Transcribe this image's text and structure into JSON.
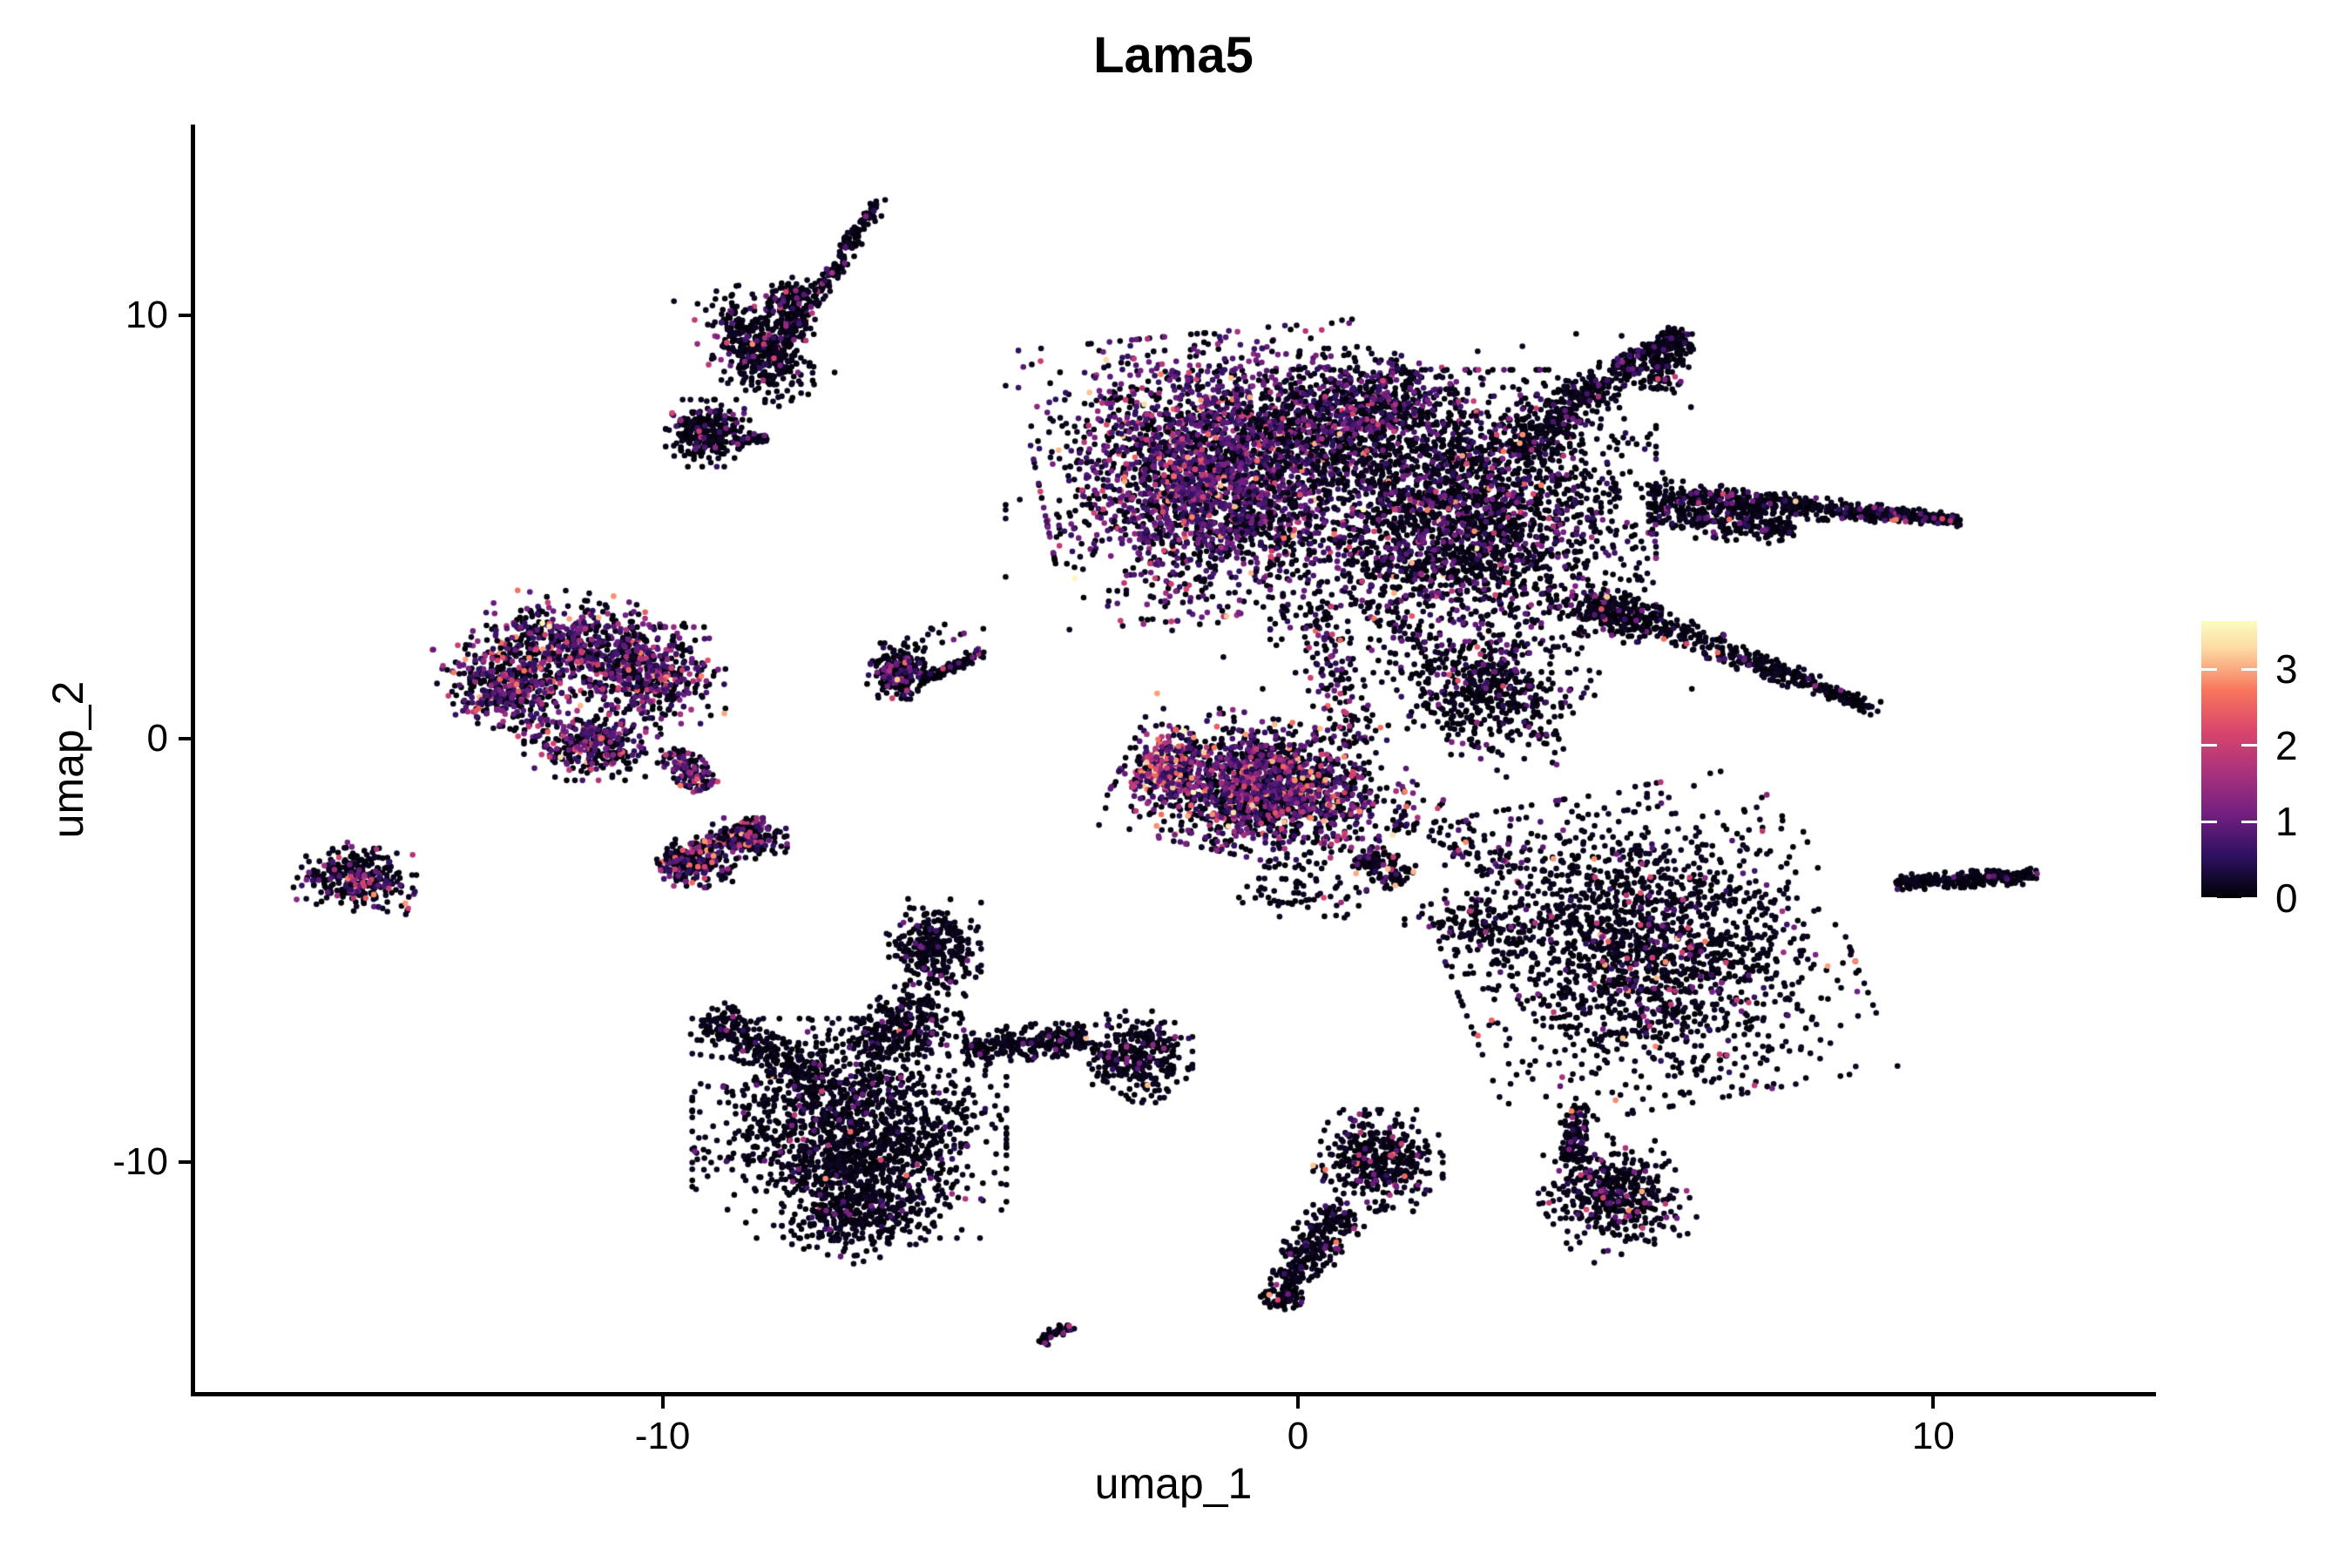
{
  "chart_data": {
    "type": "scatter",
    "title": "Lama5",
    "xlabel": "umap_1",
    "ylabel": "umap_2",
    "x_range": [
      -17.37,
      13.45
    ],
    "y_range": [
      -15.51,
      14.51
    ],
    "x_ticks": [
      {
        "value": -10,
        "label": "-10"
      },
      {
        "value": 0,
        "label": "0"
      },
      {
        "value": 10,
        "label": "10"
      }
    ],
    "y_ticks": [
      {
        "value": 10,
        "label": "10"
      },
      {
        "value": 0,
        "label": "0"
      },
      {
        "value": -10,
        "label": "-10"
      }
    ],
    "grid": false,
    "legend_position": "right",
    "point_radius_px": 3.3,
    "colorbar": {
      "min": 0,
      "max": 3.63,
      "ticks": [
        {
          "value": 3,
          "label": "3"
        },
        {
          "value": 2,
          "label": "2"
        },
        {
          "value": 1,
          "label": "1"
        },
        {
          "value": 0,
          "label": "0"
        }
      ],
      "colormap": [
        [
          0.0,
          "#000004"
        ],
        [
          0.15,
          "#2c115f"
        ],
        [
          0.3,
          "#721f81"
        ],
        [
          0.45,
          "#a8327d"
        ],
        [
          0.6,
          "#d8456c"
        ],
        [
          0.75,
          "#f8765c"
        ],
        [
          0.9,
          "#fcd9a2"
        ],
        [
          1.0,
          "#fcfdbf"
        ]
      ]
    },
    "value_bands": [
      [
        0,
        0.22
      ],
      [
        0.45,
        1.2
      ],
      [
        1.3,
        2.2
      ],
      [
        2.3,
        3.2
      ],
      [
        3.2,
        3.63
      ]
    ],
    "clusters": [
      {
        "name": "tl-streak",
        "kind": "streak",
        "x1": -6.55,
        "y1": 12.76,
        "x2": -8.29,
        "y2": 8.91,
        "w": 0.12,
        "taper": 0,
        "n": 230,
        "bands": [
          0.88,
          0.09,
          0.025,
          0.005,
          0
        ]
      },
      {
        "name": "tl-blob",
        "kind": "gauss",
        "cx": -8.47,
        "cy": 9.26,
        "rx": 0.75,
        "ry": 1.23,
        "rot": 20,
        "n": 420,
        "bands": [
          0.88,
          0.09,
          0.025,
          0.005,
          0
        ]
      },
      {
        "name": "tl-blob-upper",
        "kind": "gauss",
        "cx": -8.02,
        "cy": 10.35,
        "rx": 0.35,
        "ry": 0.5,
        "rot": 0,
        "n": 120,
        "bands": [
          0.88,
          0.09,
          0.025,
          0.005,
          0
        ]
      },
      {
        "name": "tl-tail",
        "kind": "gauss",
        "cx": -9.29,
        "cy": 7.22,
        "rx": 0.55,
        "ry": 0.66,
        "rot": 0,
        "n": 260,
        "bands": [
          0.9,
          0.075,
          0.02,
          0.005,
          0
        ]
      },
      {
        "name": "tl-dash",
        "kind": "streak",
        "x1": -8.83,
        "y1": 7.06,
        "x2": -8.36,
        "y2": 7.12,
        "w": 0.08,
        "taper": 0,
        "n": 50,
        "bands": [
          0.92,
          0.06,
          0.02,
          0,
          0
        ]
      },
      {
        "name": "main-left-lobe",
        "kind": "gauss",
        "cx": -1.37,
        "cy": 6.23,
        "rx": 2.26,
        "ry": 2.78,
        "rot": 8,
        "n": 2700,
        "bands": [
          0.5,
          0.4,
          0.08,
          0.018,
          0.002
        ]
      },
      {
        "name": "main-right-core",
        "kind": "gauss",
        "cx": 2.6,
        "cy": 5.14,
        "rx": 2.53,
        "ry": 2.98,
        "rot": 0,
        "n": 2500,
        "bands": [
          0.8,
          0.165,
          0.025,
          0.009,
          0.001
        ]
      },
      {
        "name": "main-top-mid",
        "kind": "gauss",
        "cx": 0.96,
        "cy": 7.78,
        "rx": 1.6,
        "ry": 1.2,
        "rot": 0,
        "n": 700,
        "bands": [
          0.65,
          0.28,
          0.06,
          0.01,
          0
        ]
      },
      {
        "name": "main-lower-wedge",
        "kind": "gauss",
        "cx": 2.88,
        "cy": 1.19,
        "rx": 1.3,
        "ry": 1.1,
        "rot": -20,
        "n": 420,
        "bands": [
          0.88,
          0.1,
          0.015,
          0.005,
          0
        ]
      },
      {
        "name": "arm-upper-right",
        "kind": "streak",
        "x1": 4.11,
        "y1": 7.78,
        "x2": 6.06,
        "y2": 9.63,
        "w": 0.35,
        "taper": 0.5,
        "n": 330,
        "bands": [
          0.9,
          0.085,
          0.012,
          0.003,
          0
        ]
      },
      {
        "name": "arm-upper-hook",
        "kind": "streak",
        "x1": 6.06,
        "y1": 9.53,
        "x2": 5.59,
        "y2": 8.25,
        "w": 0.25,
        "taper": 0,
        "n": 130,
        "bands": [
          0.9,
          0.085,
          0.012,
          0.003,
          0
        ]
      },
      {
        "name": "arm-upper-base",
        "kind": "streak",
        "x1": 3.43,
        "y1": 6.75,
        "x2": 4.25,
        "y2": 7.78,
        "w": 0.5,
        "taper": 0,
        "n": 200,
        "bands": [
          0.88,
          0.1,
          0.015,
          0.005,
          0
        ]
      },
      {
        "name": "arm-right",
        "kind": "streak",
        "x1": 5.55,
        "y1": 5.76,
        "x2": 10.42,
        "y2": 5.16,
        "w": 0.3,
        "taper": 0.65,
        "n": 620,
        "bands": [
          0.92,
          0.07,
          0.008,
          0.002,
          0
        ]
      },
      {
        "name": "arm-right-base",
        "kind": "streak",
        "x1": 5.55,
        "y1": 5.31,
        "x2": 7.81,
        "y2": 4.9,
        "w": 0.35,
        "taper": 0.3,
        "n": 220,
        "bands": [
          0.92,
          0.07,
          0.008,
          0.002,
          0
        ]
      },
      {
        "name": "arm-lower-right",
        "kind": "streak",
        "x1": 4.73,
        "y1": 3.25,
        "x2": 9.02,
        "y2": 0.74,
        "w": 0.28,
        "taper": 0.5,
        "n": 430,
        "bands": [
          0.92,
          0.07,
          0.008,
          0.002,
          0
        ]
      },
      {
        "name": "arm-lower-base",
        "kind": "gauss",
        "cx": 4.9,
        "cy": 2.9,
        "rx": 0.8,
        "ry": 0.5,
        "rot": -25,
        "n": 150,
        "bands": [
          0.9,
          0.08,
          0.015,
          0.005,
          0
        ]
      },
      {
        "name": "bridge-center",
        "kind": "streak",
        "x1": 0.21,
        "y1": 3.15,
        "x2": 0.93,
        "y2": -0.14,
        "w": 0.35,
        "taper": 0,
        "n": 140,
        "bands": [
          0.7,
          0.21,
          0.07,
          0.02,
          0
        ]
      },
      {
        "name": "main-halo",
        "kind": "gauss",
        "cx": 0.8,
        "cy": 5.5,
        "rx": 4.5,
        "ry": 3.6,
        "rot": 0,
        "n": 350,
        "bands": [
          0.85,
          0.12,
          0.02,
          0.01,
          0
        ]
      },
      {
        "name": "center-wedge",
        "kind": "gauss",
        "cx": -0.55,
        "cy": -1.17,
        "rx": 1.9,
        "ry": 1.35,
        "rot": -18,
        "n": 1750,
        "bands": [
          0.58,
          0.28,
          0.1,
          0.035,
          0.005
        ]
      },
      {
        "name": "center-hotspot",
        "kind": "gauss",
        "cx": -2.12,
        "cy": -0.66,
        "rx": 0.45,
        "ry": 0.75,
        "rot": -15,
        "n": 220,
        "bands": [
          0.28,
          0.28,
          0.27,
          0.15,
          0.02
        ]
      },
      {
        "name": "center-tail",
        "kind": "streak",
        "x1": 0.96,
        "y1": -2.72,
        "x2": 1.71,
        "y2": -3.33,
        "w": 0.3,
        "taper": 0,
        "n": 120,
        "bands": [
          0.85,
          0.11,
          0.03,
          0.01,
          0
        ]
      },
      {
        "name": "center-under",
        "kind": "gauss",
        "cx": 0,
        "cy": -3.6,
        "rx": 0.9,
        "ry": 0.6,
        "rot": 0,
        "n": 70,
        "bands": [
          0.9,
          0.08,
          0.02,
          0,
          0
        ]
      },
      {
        "name": "fan-top",
        "kind": "gauss",
        "cx": -11.38,
        "cy": 2.32,
        "rx": 1.35,
        "ry": 0.95,
        "rot": -10,
        "n": 500,
        "bands": [
          0.54,
          0.33,
          0.1,
          0.027,
          0.003
        ]
      },
      {
        "name": "fan-left",
        "kind": "gauss",
        "cx": -12.4,
        "cy": 1.19,
        "rx": 0.9,
        "ry": 1.0,
        "rot": 15,
        "n": 420,
        "bands": [
          0.54,
          0.33,
          0.1,
          0.027,
          0.003
        ]
      },
      {
        "name": "fan-right",
        "kind": "gauss",
        "cx": -10.21,
        "cy": 1.5,
        "rx": 1.0,
        "ry": 0.95,
        "rot": 0,
        "n": 450,
        "bands": [
          0.54,
          0.33,
          0.1,
          0.027,
          0.003
        ]
      },
      {
        "name": "fan-bottom",
        "kind": "gauss",
        "cx": -11.1,
        "cy": -0.14,
        "rx": 0.9,
        "ry": 0.7,
        "rot": 0,
        "n": 330,
        "bands": [
          0.58,
          0.3,
          0.09,
          0.027,
          0.003
        ]
      },
      {
        "name": "fan-tail",
        "kind": "streak",
        "x1": -9.84,
        "y1": -0.29,
        "x2": -9.32,
        "y2": -1.19,
        "w": 0.22,
        "taper": 0,
        "n": 130,
        "bands": [
          0.6,
          0.25,
          0.11,
          0.04,
          0
        ]
      },
      {
        "name": "pink-streak",
        "kind": "streak",
        "x1": -10.05,
        "y1": -3.07,
        "x2": -8.43,
        "y2": -1.95,
        "w": 0.15,
        "taper": 0,
        "n": 170,
        "bands": [
          0.38,
          0.25,
          0.24,
          0.12,
          0.01
        ]
      },
      {
        "name": "pink-streak-under1",
        "kind": "gauss",
        "cx": -9.46,
        "cy": -2.92,
        "rx": 0.55,
        "ry": 0.5,
        "rot": 0,
        "n": 200,
        "bands": [
          0.75,
          0.15,
          0.07,
          0.03,
          0
        ]
      },
      {
        "name": "pink-streak-under2",
        "kind": "gauss",
        "cx": -8.64,
        "cy": -2.35,
        "rx": 0.5,
        "ry": 0.4,
        "rot": 0,
        "n": 150,
        "bands": [
          0.75,
          0.15,
          0.07,
          0.03,
          0
        ]
      },
      {
        "name": "swoosh-blob",
        "kind": "gauss",
        "cx": -6.28,
        "cy": 1.6,
        "rx": 0.42,
        "ry": 0.55,
        "rot": 0,
        "n": 230,
        "bands": [
          0.78,
          0.17,
          0.04,
          0.01,
          0
        ]
      },
      {
        "name": "swoosh-tail",
        "kind": "streak",
        "x1": -5.87,
        "y1": 1.4,
        "x2": -4.96,
        "y2": 2.06,
        "w": 0.1,
        "taper": 0,
        "n": 90,
        "bands": [
          0.92,
          0.06,
          0.02,
          0,
          0
        ]
      },
      {
        "name": "swoosh-floaters",
        "kind": "gauss",
        "cx": -5.6,
        "cy": 2.5,
        "rx": 0.6,
        "ry": 0.3,
        "rot": 0,
        "n": 12,
        "bands": [
          0.8,
          0.2,
          0,
          0,
          0
        ]
      },
      {
        "name": "far-left-blob",
        "kind": "gauss",
        "cx": -14.78,
        "cy": -3.29,
        "rx": 0.78,
        "ry": 0.64,
        "rot": -15,
        "n": 300,
        "bands": [
          0.74,
          0.14,
          0.1,
          0.02,
          0
        ]
      },
      {
        "name": "dancer-head",
        "kind": "gauss",
        "cx": -5.73,
        "cy": -4.98,
        "rx": 0.62,
        "ry": 1.0,
        "rot": 0,
        "n": 300,
        "bands": [
          0.945,
          0.042,
          0.01,
          0.003,
          0
        ]
      },
      {
        "name": "dancer-neck",
        "kind": "streak",
        "x1": -5.78,
        "y1": -6.17,
        "x2": -6.72,
        "y2": -7.49,
        "w": 0.5,
        "taper": 0,
        "n": 260,
        "bands": [
          0.945,
          0.042,
          0.01,
          0.003,
          0
        ]
      },
      {
        "name": "dancer-body",
        "kind": "gauss",
        "cx": -7.06,
        "cy": -9.2,
        "rx": 2.06,
        "ry": 2.16,
        "rot": 0,
        "n": 1500,
        "bands": [
          0.945,
          0.042,
          0.01,
          0.003,
          0
        ]
      },
      {
        "name": "dancer-arm-left",
        "kind": "streak",
        "x1": -9.36,
        "y1": -6.58,
        "x2": -7.61,
        "y2": -7.9,
        "w": 0.35,
        "taper": 0,
        "n": 260,
        "bands": [
          0.945,
          0.042,
          0.01,
          0.003,
          0
        ]
      },
      {
        "name": "dancer-arm-right",
        "kind": "streak",
        "x1": -5.24,
        "y1": -7.35,
        "x2": -3.32,
        "y2": -7.0,
        "w": 0.3,
        "taper": 0,
        "n": 260,
        "bands": [
          0.945,
          0.042,
          0.01,
          0.003,
          0
        ]
      },
      {
        "name": "dancer-hand-blob",
        "kind": "gauss",
        "cx": -2.56,
        "cy": -7.51,
        "rx": 0.75,
        "ry": 0.9,
        "rot": 0,
        "n": 320,
        "bands": [
          0.93,
          0.05,
          0.015,
          0.005,
          0
        ]
      },
      {
        "name": "dancer-bottom",
        "kind": "gauss",
        "cx": -6.83,
        "cy": -11.19,
        "rx": 1.1,
        "ry": 0.9,
        "rot": 20,
        "n": 380,
        "bands": [
          0.945,
          0.042,
          0.01,
          0.003,
          0
        ]
      },
      {
        "name": "comma-head",
        "kind": "gauss",
        "cx": 1.26,
        "cy": -9.96,
        "rx": 0.85,
        "ry": 1.0,
        "rot": 0,
        "n": 400,
        "bands": [
          0.9,
          0.065,
          0.02,
          0.013,
          0.002
        ]
      },
      {
        "name": "comma-tail1",
        "kind": "streak",
        "x1": 0.71,
        "y1": -11.11,
        "x2": 0.03,
        "y2": -12.43,
        "w": 0.35,
        "taper": 0,
        "n": 200,
        "bands": [
          0.93,
          0.05,
          0.015,
          0.005,
          0
        ]
      },
      {
        "name": "comma-tail2",
        "kind": "streak",
        "x1": 0.03,
        "y1": -12.43,
        "x2": -0.36,
        "y2": -13.42,
        "w": 0.25,
        "taper": 0,
        "n": 130,
        "bands": [
          0.93,
          0.05,
          0.015,
          0.005,
          0
        ]
      },
      {
        "name": "bottom-right-body",
        "kind": "gauss",
        "cx": 4.96,
        "cy": -10.78,
        "rx": 0.95,
        "ry": 1.1,
        "rot": 25,
        "n": 430,
        "bands": [
          0.91,
          0.07,
          0.015,
          0.005,
          0
        ]
      },
      {
        "name": "bottom-right-tail",
        "kind": "streak",
        "x1": 4.28,
        "y1": -9.96,
        "x2": 4.43,
        "y2": -8.64,
        "w": 0.18,
        "taper": 0,
        "n": 110,
        "bands": [
          0.91,
          0.07,
          0.015,
          0.005,
          0
        ]
      },
      {
        "name": "far-right-streak",
        "kind": "streak",
        "x1": 9.43,
        "y1": -3.4,
        "x2": 11.62,
        "y2": -3.23,
        "w": 0.14,
        "taper": 0,
        "n": 280,
        "bands": [
          0.97,
          0.028,
          0.002,
          0,
          0
        ]
      },
      {
        "name": "tiny-dash",
        "kind": "streak",
        "x1": -4.07,
        "y1": -14.24,
        "x2": -3.56,
        "y2": -13.85,
        "w": 0.1,
        "taper": 0,
        "n": 45,
        "bands": [
          0.85,
          0.13,
          0.02,
          0,
          0
        ]
      },
      {
        "name": "right-round",
        "kind": "gauss",
        "cx": 5.46,
        "cy": -4.94,
        "rx": 2.6,
        "ry": 3.1,
        "rot": 15,
        "n": 1900,
        "bands": [
          0.915,
          0.055,
          0.02,
          0.009,
          0.001
        ]
      },
      {
        "name": "right-round-halo",
        "kind": "gauss",
        "cx": 2.88,
        "cy": -4.36,
        "rx": 1.0,
        "ry": 0.8,
        "rot": 0,
        "n": 130,
        "bands": [
          0.93,
          0.05,
          0.02,
          0,
          0
        ]
      },
      {
        "name": "bridge-cn",
        "kind": "streak",
        "x1": 1.64,
        "y1": -1.69,
        "x2": 3.56,
        "y2": -3.13,
        "w": 0.5,
        "taper": 0,
        "n": 90,
        "bands": [
          0.8,
          0.14,
          0.05,
          0.01,
          0
        ]
      },
      {
        "name": "sparse-mid",
        "kind": "gauss",
        "cx": 3.4,
        "cy": 0.3,
        "rx": 1.2,
        "ry": 1.0,
        "rot": 0,
        "n": 70,
        "bands": [
          0.9,
          0.08,
          0.02,
          0,
          0
        ]
      }
    ]
  }
}
